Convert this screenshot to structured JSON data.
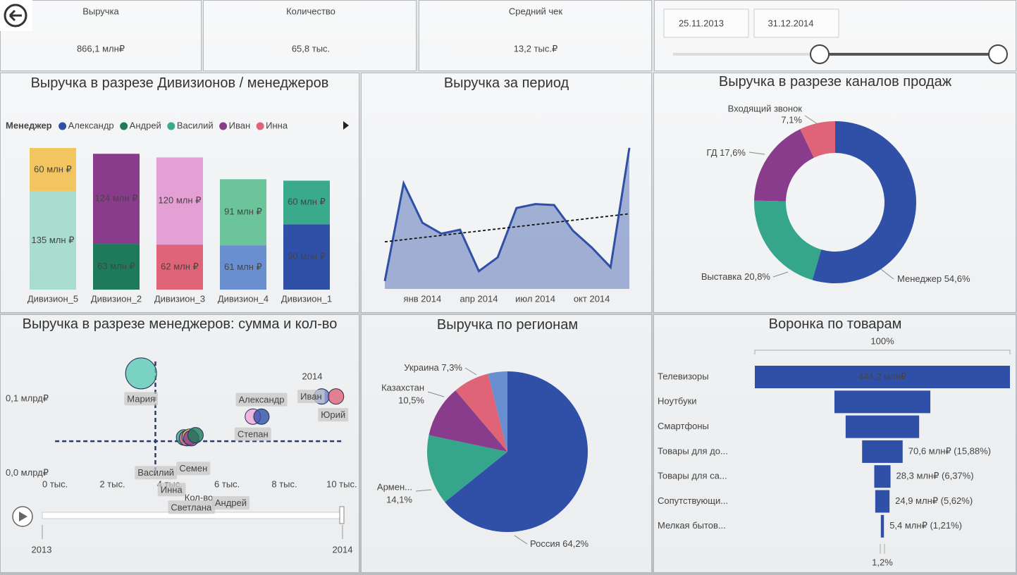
{
  "kpis": [
    {
      "label": "Выручка",
      "value": "866,1 млн₽"
    },
    {
      "label": "Количество",
      "value": "65,8 тыс."
    },
    {
      "label": "Средний чек",
      "value": "13,2 тыс.₽"
    }
  ],
  "date_slicer": {
    "start": "25.11.2013",
    "end": "31.12.2014"
  },
  "chart_data": [
    {
      "type": "stacked_bar",
      "title": "Выручка в разрезе Дивизионов / менеджеров",
      "legend_title": "Менеджер",
      "categories": [
        "Дивизион_5",
        "Дивизион_2",
        "Дивизион_3",
        "Дивизион_4",
        "Дивизион_1"
      ],
      "series": [
        {
          "name": "Александр",
          "color": "#3050a8",
          "values": [
            null,
            null,
            null,
            null,
            90
          ],
          "value_labels": [
            null,
            null,
            null,
            null,
            "90 млн ₽"
          ]
        },
        {
          "name": "Андрей",
          "color": "#1f7a5c",
          "values": [
            null,
            63,
            null,
            null,
            null
          ],
          "value_labels": [
            null,
            "63 млн ₽",
            null,
            null,
            null
          ]
        },
        {
          "name": "Василий",
          "color": "#3aaa8c",
          "values": [
            null,
            null,
            null,
            null,
            60
          ],
          "value_labels": [
            null,
            null,
            null,
            null,
            "60 млн ₽"
          ]
        },
        {
          "name": "Иван",
          "color": "#8a3c8c",
          "values": [
            null,
            124,
            null,
            null,
            null
          ],
          "value_labels": [
            null,
            "124 млн ₽",
            null,
            null,
            null
          ]
        },
        {
          "name": "Инна",
          "color": "#e06477",
          "values": [
            null,
            null,
            62,
            null,
            null
          ],
          "value_labels": [
            null,
            null,
            "62 млн ₽",
            null,
            null
          ]
        },
        {
          "name": null,
          "color": "#6a8fd0",
          "values": [
            null,
            null,
            null,
            61,
            null
          ],
          "value_labels": [
            null,
            null,
            null,
            "61 млн ₽",
            null
          ]
        },
        {
          "name": null,
          "color": "#a8ddd0",
          "values": [
            135,
            null,
            null,
            null,
            null
          ],
          "value_labels": [
            "135 млн ₽",
            null,
            null,
            null,
            null
          ]
        },
        {
          "name": null,
          "color": "#e4a0d4",
          "values": [
            null,
            null,
            120,
            null,
            null
          ],
          "value_labels": [
            null,
            null,
            "120 млн ₽",
            null,
            null
          ]
        },
        {
          "name": null,
          "color": "#6cc59a",
          "values": [
            null,
            null,
            null,
            91,
            null
          ],
          "value_labels": [
            null,
            null,
            null,
            "91 млн ₽",
            null
          ]
        },
        {
          "name": null,
          "color": "#f3c560",
          "values": [
            60,
            null,
            null,
            null,
            null
          ],
          "value_labels": [
            "60 млн ₽",
            null,
            null,
            null,
            null
          ]
        }
      ]
    },
    {
      "type": "area_line",
      "title": "Выручка за период",
      "categories": [
        null,
        null,
        "янв 2014",
        null,
        null,
        "апр 2014",
        null,
        null,
        "июл 2014",
        null,
        null,
        "окт 2014",
        null,
        null
      ],
      "values": [
        8,
        107,
        67,
        56,
        60,
        18,
        32,
        82,
        86,
        85,
        59,
        42,
        22,
        143
      ],
      "color": "#3050a8",
      "ylim": [
        0,
        150
      ],
      "trend_line": true
    },
    {
      "type": "donut",
      "title": "Выручка в разрезе каналов продаж",
      "categories": [
        "Менеджер",
        "Выставка",
        "ГД",
        "Входящий звонок"
      ],
      "values": [
        54.6,
        20.8,
        17.6,
        7.1
      ],
      "value_labels": [
        "54,6%",
        "20,8%",
        "17,6%",
        "7,1%"
      ],
      "colors": [
        "#3050a8",
        "#35a58c",
        "#8a3c8c",
        "#e06477"
      ]
    },
    {
      "type": "scatter",
      "title": "Выручка в разрезе менеджеров: сумма и кол-во",
      "x_label": "Кол-во",
      "year": "2014",
      "play_axis": [
        "2013",
        "2014"
      ],
      "categories": [
        "Мария",
        "Василий",
        "Инна",
        "Семен",
        "Светлана",
        "Андрей",
        "Степан",
        "Александр",
        "Иван",
        "Юрий"
      ],
      "x": [
        3.0,
        4.5,
        4.6,
        4.7,
        4.75,
        4.9,
        6.9,
        7.2,
        9.3,
        9.8
      ],
      "values": [
        0.134,
        0.048,
        0.047,
        0.049,
        0.047,
        0.051,
        0.076,
        0.076,
        0.103,
        0.103
      ],
      "sizes": [
        2,
        1,
        1,
        1,
        1,
        1,
        1,
        1,
        1,
        1
      ],
      "colors": [
        "#5ccab8",
        "#3aaa8c",
        "#e06477",
        "#f3c560",
        "#8a3c8c",
        "#1f7a5c",
        "#f0a8d8",
        "#3050a8",
        "#6a7fd0",
        "#e06477"
      ],
      "xlim": [
        -0.2,
        10.2
      ],
      "ylim": [
        -0.008,
        0.15
      ],
      "xticks": [
        {
          "value": 0,
          "label": "0 тыс."
        },
        {
          "value": 2,
          "label": "2 тыс."
        },
        {
          "value": 4,
          "label": "4 тыс."
        },
        {
          "value": 6,
          "label": "6 тыс."
        },
        {
          "value": 8,
          "label": "8 тыс."
        },
        {
          "value": 10,
          "label": "10 тыс."
        }
      ],
      "yticks": [
        {
          "value": 0,
          "label": "0,0 млрд₽"
        },
        {
          "value": 0.1,
          "label": "0,1 млрд₽"
        }
      ],
      "reference_lines": {
        "x": 3.5,
        "y": 0.043
      }
    },
    {
      "type": "pie",
      "title": "Выручка по регионам",
      "categories": [
        "Россия",
        "Армен...",
        "Казахстан",
        "Украина",
        null
      ],
      "values": [
        64.2,
        14.1,
        10.5,
        7.3,
        3.9
      ],
      "value_labels": [
        "64,2%",
        "14,1%",
        "10,5%",
        "7,3%",
        null
      ],
      "colors": [
        "#3050a8",
        "#35a58c",
        "#8a3c8c",
        "#e06477",
        "#6a8fd0"
      ]
    },
    {
      "type": "funnel",
      "title": "Воронка по товарам",
      "categories": [
        "Телевизоры",
        "Ноутбуки",
        "Смартфоны",
        "Товары для до...",
        "Товары для са...",
        "Сопутствующи...",
        "Мелкая бытов..."
      ],
      "values": [
        444.2,
        167,
        128,
        70.6,
        28.3,
        24.9,
        5.4
      ],
      "value_labels": [
        "444,2 млн₽",
        null,
        null,
        "70,6 млн₽ (15,88%)",
        "28,3 млн₽ (6,37%)",
        "24,9 млн₽ (5,62%)",
        "5,4 млн₽ (1,21%)"
      ],
      "color": "#3050a8",
      "top_label": "100%",
      "bottom_label": "1,2%"
    }
  ]
}
